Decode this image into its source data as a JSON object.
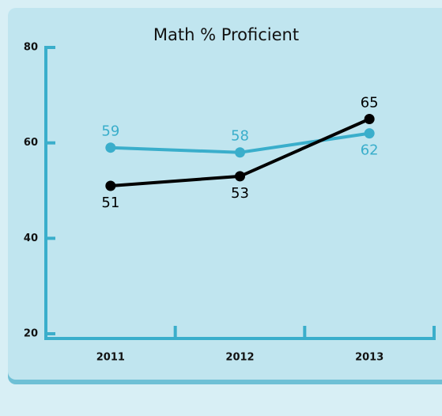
{
  "chart_data": {
    "type": "line",
    "title": "Math % Proficient",
    "categories": [
      "2011",
      "2012",
      "2013"
    ],
    "series": [
      {
        "color": "#3aaecb",
        "values": [
          59,
          58,
          62
        ]
      },
      {
        "color": "#000000",
        "values": [
          51,
          53,
          65
        ]
      }
    ],
    "ylim": [
      20,
      80
    ],
    "yticks": [
      20,
      40,
      60,
      80
    ],
    "axis_color": "#3aaecb"
  }
}
